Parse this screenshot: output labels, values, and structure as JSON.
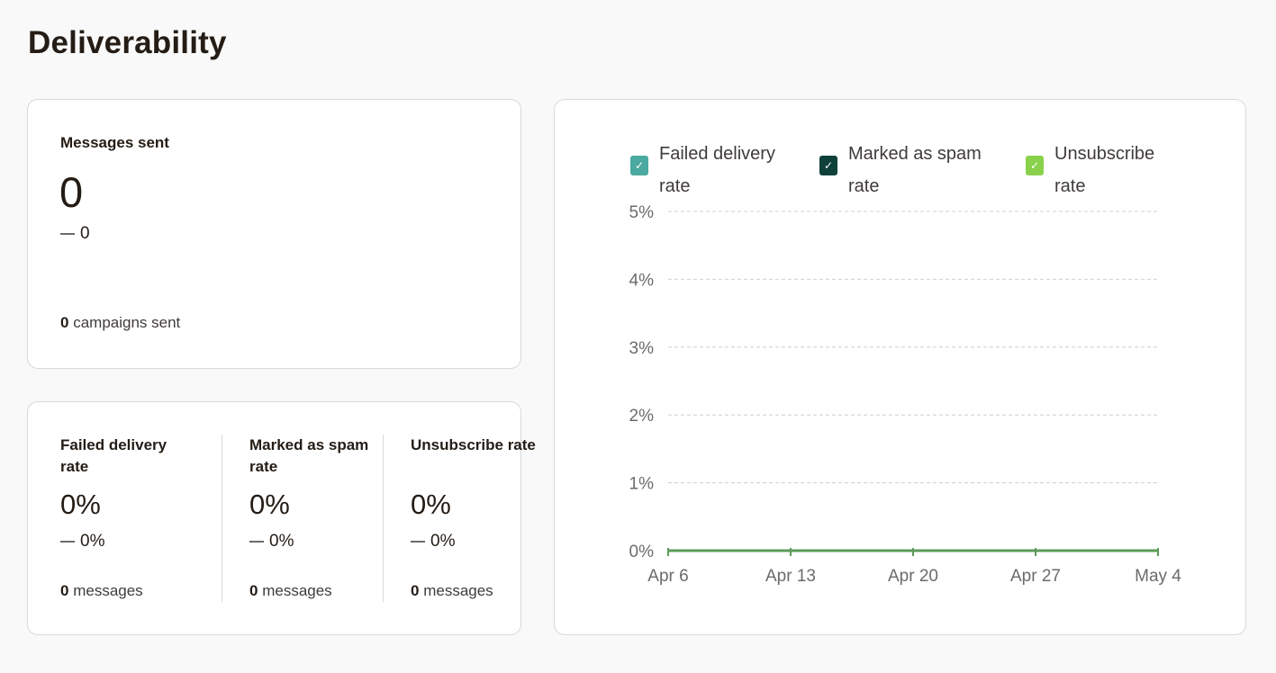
{
  "page": {
    "title": "Deliverability"
  },
  "messages_sent": {
    "label": "Messages sent",
    "value": "0",
    "delta": "0",
    "campaigns_count": "0",
    "campaigns_label": "campaigns sent"
  },
  "rates": [
    {
      "label": "Failed delivery rate",
      "value": "0%",
      "delta": "0%",
      "count": "0",
      "count_label": "messages"
    },
    {
      "label": "Marked as spam rate",
      "value": "0%",
      "delta": "0%",
      "count": "0",
      "count_label": "messages"
    },
    {
      "label": "Unsubscribe rate",
      "value": "0%",
      "delta": "0%",
      "count": "0",
      "count_label": "messages"
    }
  ],
  "chart_data": {
    "type": "line",
    "x": [
      "Apr 6",
      "Apr 13",
      "Apr 20",
      "Apr 27",
      "May 4"
    ],
    "yticks": [
      "0%",
      "1%",
      "2%",
      "3%",
      "4%",
      "5%"
    ],
    "ylim": [
      0,
      5
    ],
    "grid": true,
    "legend_position": "top",
    "series": [
      {
        "name": "Failed delivery rate",
        "color": "#4aa9a0",
        "checked": true,
        "values": [
          0,
          0,
          0,
          0,
          0
        ]
      },
      {
        "name": "Marked as spam rate",
        "color": "#0f4039",
        "checked": true,
        "values": [
          0,
          0,
          0,
          0,
          0
        ]
      },
      {
        "name": "Unsubscribe rate",
        "color": "#8ad14b",
        "checked": true,
        "values": [
          0,
          0,
          0,
          0,
          0
        ]
      }
    ],
    "visible_line_color": "#5b9a58"
  }
}
